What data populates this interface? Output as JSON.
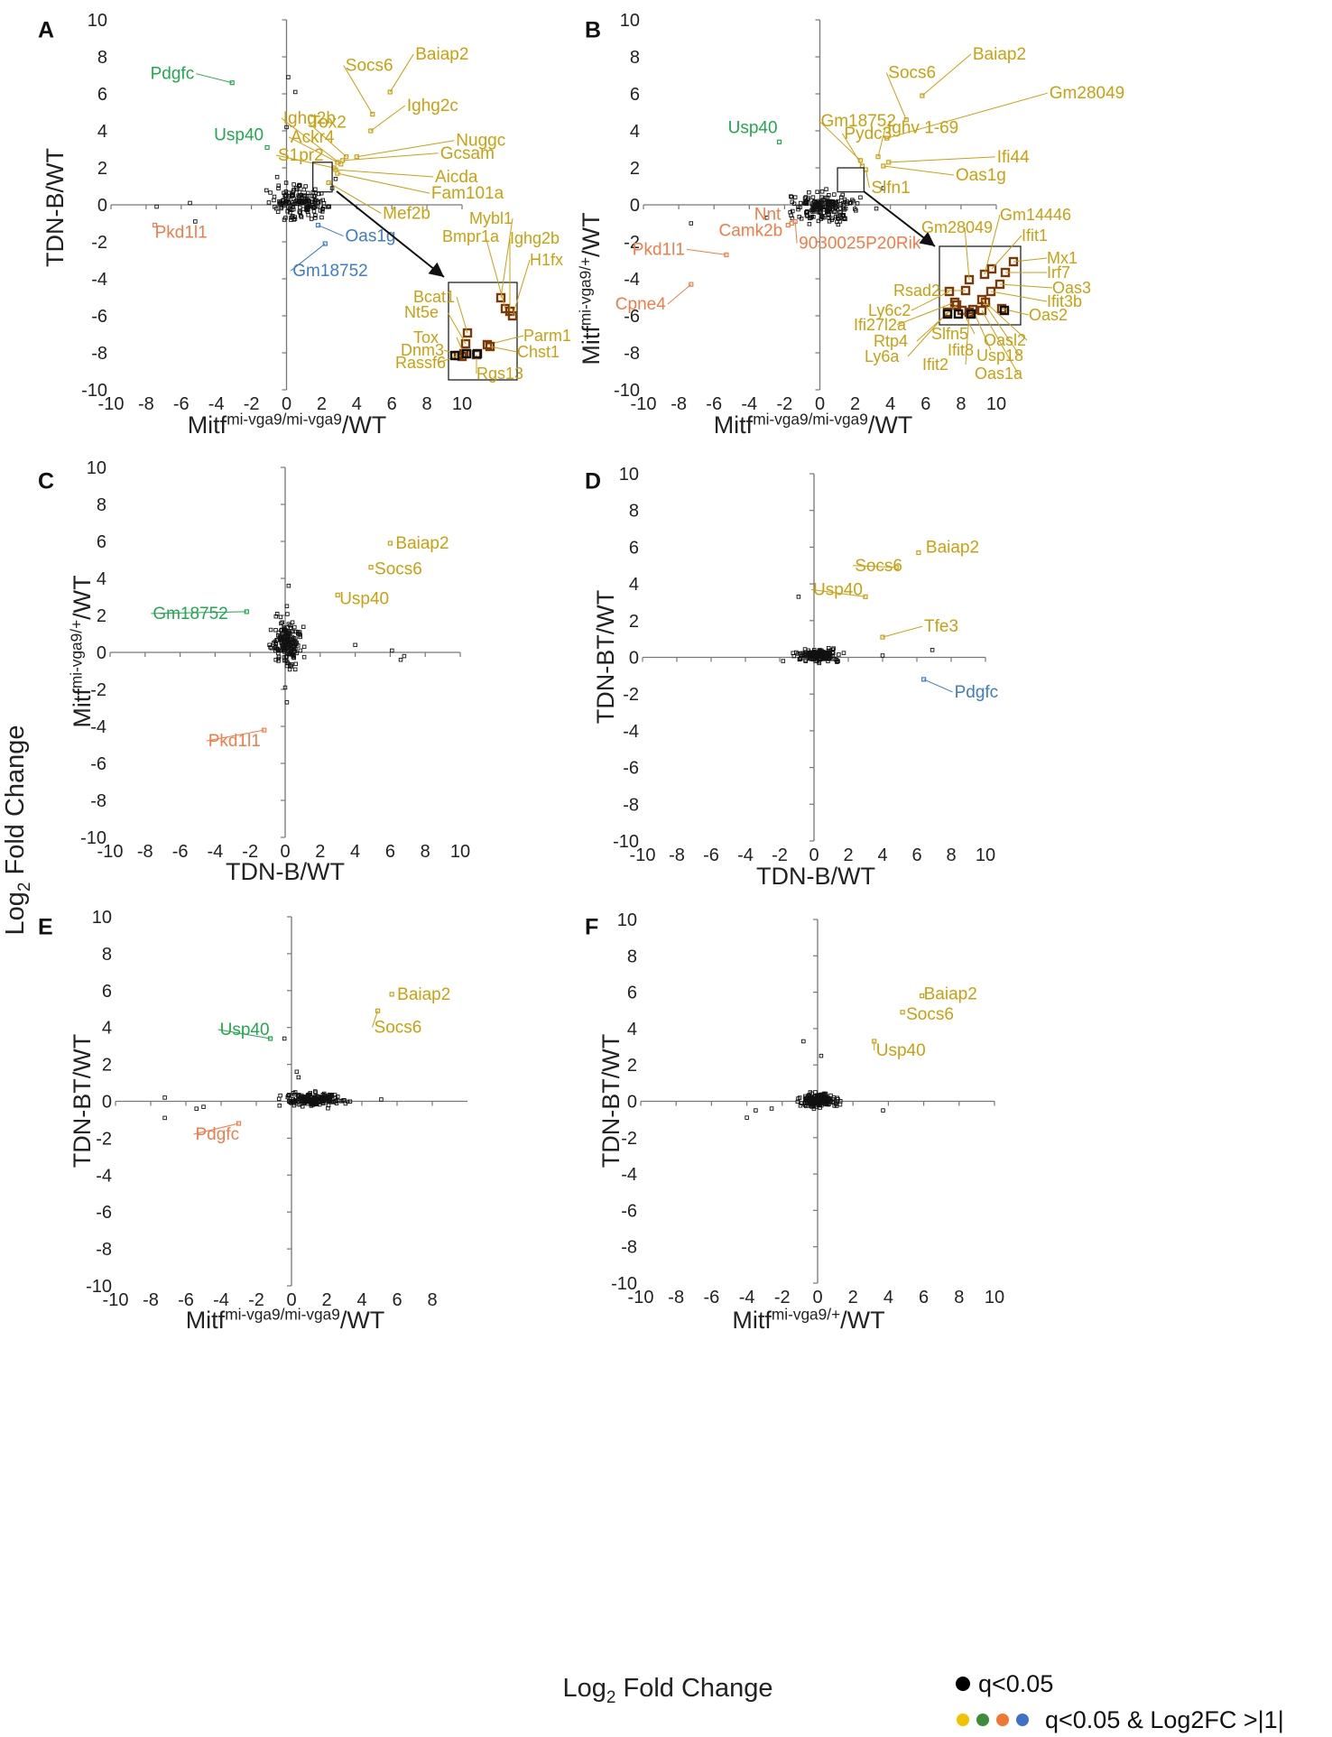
{
  "figure": {
    "shared_ylabel": "Log2 Fold Change",
    "shared_xlabel": "Log2 Fold Change",
    "legend": {
      "sig_label": "q<0.05",
      "sig_dot_color": "#000000",
      "fc_label": "q<0.05 & Log2FC >|1|",
      "fc_dot_colors": [
        "#F2C200",
        "#3C8C3C",
        "#F07830",
        "#3D72C8"
      ]
    },
    "colors": {
      "gold": "#C9A010",
      "green": "#22A84E",
      "orange": "#F07C48",
      "blue": "#3D7CC9",
      "brown": "#7A3A0A"
    }
  },
  "chart_data": [
    {
      "panel": "A",
      "type": "scatter",
      "xlabel": "Mitf^mi-vga9/mi-vga9/WT",
      "ylabel": "TDN-B/WT",
      "xlim": [
        -10,
        10
      ],
      "ylim": [
        -10,
        10
      ],
      "ticks": [
        "-10",
        "-8",
        "-6",
        "-4",
        "-2",
        "0",
        "2",
        "4",
        "6",
        "8",
        "10"
      ],
      "labeled_genes": [
        {
          "gene": "Pdgfc",
          "x": -3.1,
          "y": 6.6,
          "color": "green"
        },
        {
          "gene": "Usp40",
          "x": -1.1,
          "y": 3.1,
          "color": "green"
        },
        {
          "gene": "Pkd1l1",
          "x": -7.5,
          "y": -1.1,
          "color": "orange"
        },
        {
          "gene": "Oas1g",
          "x": 1.8,
          "y": -1.1,
          "color": "blue"
        },
        {
          "gene": "Gm18752",
          "x": 2.2,
          "y": -2.1,
          "color": "blue"
        },
        {
          "gene": "Socs6",
          "x": 4.9,
          "y": 4.9,
          "color": "gold"
        },
        {
          "gene": "Baiap2",
          "x": 5.9,
          "y": 6.1,
          "color": "gold"
        },
        {
          "gene": "Tox2",
          "x": 3.4,
          "y": 2.6,
          "color": "gold"
        },
        {
          "gene": "Ighg2b",
          "x": 3.1,
          "y": 2.2,
          "color": "gold"
        },
        {
          "gene": "Ighg2c",
          "x": 4.8,
          "y": 4.0,
          "color": "gold"
        },
        {
          "gene": "Ackr4",
          "x": 2.9,
          "y": 2.3,
          "color": "gold"
        },
        {
          "gene": "S1pr2",
          "x": 2.7,
          "y": 2.0,
          "color": "gold"
        },
        {
          "gene": "Nuggc",
          "x": 4.0,
          "y": 2.6,
          "color": "gold"
        },
        {
          "gene": "Gcsam",
          "x": 3.2,
          "y": 2.4,
          "color": "gold"
        },
        {
          "gene": "Aicda",
          "x": 2.8,
          "y": 1.9,
          "color": "gold"
        },
        {
          "gene": "Fam101a",
          "x": 2.9,
          "y": 1.7,
          "color": "gold"
        },
        {
          "gene": "Mef2b",
          "x": 2.4,
          "y": 1.2,
          "color": "gold"
        }
      ],
      "inset_genes": [
        {
          "gene": "Mybl1",
          "x": 1.3,
          "y": 2.6
        },
        {
          "gene": "Bmpr1a",
          "x": 1.4,
          "y": 2.4
        },
        {
          "gene": "Ighg2b",
          "x": 1.7,
          "y": 2.5
        },
        {
          "gene": "H1fx",
          "x": 1.9,
          "y": 2.3
        },
        {
          "gene": "Bcat1",
          "x": 1.6,
          "y": 1.6
        },
        {
          "gene": "Nt5e",
          "x": 1.5,
          "y": 1.4
        },
        {
          "gene": "Tox",
          "x": 1.6,
          "y": 1.1
        },
        {
          "gene": "Dnm3",
          "x": 1.8,
          "y": 1.0
        },
        {
          "gene": "Rassf6",
          "x": 1.7,
          "y": 0.9
        },
        {
          "gene": "Parm1",
          "x": 2.1,
          "y": 1.1
        },
        {
          "gene": "Chst1",
          "x": 2.2,
          "y": 1.0
        },
        {
          "gene": "Rgs13",
          "x": 2.0,
          "y": 0.8
        }
      ]
    },
    {
      "panel": "B",
      "type": "scatter",
      "xlabel": "Mitf^mi-vga9/mi-vga9/WT",
      "ylabel": "Mitf^mi-vga9/+/WT",
      "xlim": [
        -10,
        10
      ],
      "ylim": [
        -10,
        10
      ],
      "ticks": [
        "-10",
        "-8",
        "-6",
        "-4",
        "-2",
        "0",
        "2",
        "4",
        "6",
        "8",
        "10"
      ],
      "labeled_genes": [
        {
          "gene": "Usp40",
          "x": -2.3,
          "y": 3.4,
          "color": "green"
        },
        {
          "gene": "Pkd1l1",
          "x": -5.3,
          "y": -2.7,
          "color": "orange"
        },
        {
          "gene": "Cpne4",
          "x": -7.3,
          "y": -4.3,
          "color": "orange"
        },
        {
          "gene": "Nnt",
          "x": -1.8,
          "y": -1.1,
          "color": "orange"
        },
        {
          "gene": "Camk2b",
          "x": -1.6,
          "y": -1.0,
          "color": "orange"
        },
        {
          "gene": "9030025P20Rik",
          "x": -1.4,
          "y": -0.9,
          "color": "orange"
        },
        {
          "gene": "Baiap2",
          "x": 5.8,
          "y": 5.9,
          "color": "gold"
        },
        {
          "gene": "Socs6",
          "x": 4.9,
          "y": 4.6,
          "color": "gold"
        },
        {
          "gene": "Gm28049",
          "x": 3.8,
          "y": 3.6,
          "color": "gold"
        },
        {
          "gene": "Gm18752",
          "x": 2.3,
          "y": 2.4,
          "color": "gold"
        },
        {
          "gene": "Pydc3",
          "x": 2.4,
          "y": 2.1,
          "color": "gold"
        },
        {
          "gene": "Ighv 1-69",
          "x": 3.3,
          "y": 2.6,
          "color": "gold"
        },
        {
          "gene": "Ifi44",
          "x": 3.9,
          "y": 2.3,
          "color": "gold"
        },
        {
          "gene": "Oas1g",
          "x": 3.6,
          "y": 2.1,
          "color": "gold"
        },
        {
          "gene": "Slfn1",
          "x": 2.6,
          "y": 1.9,
          "color": "gold"
        }
      ],
      "inset_genes": [
        {
          "gene": "Gm28049",
          "x": 1.6,
          "y": 1.4
        },
        {
          "gene": "Gm14446",
          "x": 1.9,
          "y": 1.5
        },
        {
          "gene": "Ifit1",
          "x": 2.1,
          "y": 1.5
        },
        {
          "gene": "Mx1",
          "x": 2.3,
          "y": 1.6
        },
        {
          "gene": "Irf7",
          "x": 2.2,
          "y": 1.5
        },
        {
          "gene": "Oas3",
          "x": 2.2,
          "y": 1.4
        },
        {
          "gene": "Ifit3b",
          "x": 2.1,
          "y": 1.3
        },
        {
          "gene": "Oas2",
          "x": 2.4,
          "y": 1.1
        },
        {
          "gene": "Rsad2",
          "x": 1.4,
          "y": 1.3
        },
        {
          "gene": "Ly6c2",
          "x": 1.2,
          "y": 1.3
        },
        {
          "gene": "Ifi27l2a",
          "x": 1.2,
          "y": 1.2
        },
        {
          "gene": "Rtp4",
          "x": 1.3,
          "y": 1.2
        },
        {
          "gene": "Ly6a",
          "x": 1.2,
          "y": 1.1
        },
        {
          "gene": "Slfn5",
          "x": 1.5,
          "y": 1.2
        },
        {
          "gene": "Ifit2",
          "x": 1.6,
          "y": 1.1
        },
        {
          "gene": "Ifit8",
          "x": 1.7,
          "y": 1.1
        },
        {
          "gene": "Oasl2",
          "x": 2.0,
          "y": 1.2
        },
        {
          "gene": "Usp18",
          "x": 1.9,
          "y": 1.2
        },
        {
          "gene": "Oas1a",
          "x": 1.9,
          "y": 1.1
        }
      ]
    },
    {
      "panel": "C",
      "type": "scatter",
      "xlabel": "TDN-B/WT",
      "ylabel": "Mitf^mi-vga9/+/WT",
      "xlim": [
        -10,
        10
      ],
      "ylim": [
        -10,
        10
      ],
      "ticks": [
        "-10",
        "-8",
        "-6",
        "-4",
        "-2",
        "0",
        "2",
        "4",
        "6",
        "8",
        "10"
      ],
      "labeled_genes": [
        {
          "gene": "Gm18752",
          "x": -2.2,
          "y": 2.2,
          "color": "green"
        },
        {
          "gene": "Pkd1l1",
          "x": -1.2,
          "y": -4.2,
          "color": "orange"
        },
        {
          "gene": "Baiap2",
          "x": 6.0,
          "y": 5.9,
          "color": "gold"
        },
        {
          "gene": "Socs6",
          "x": 4.9,
          "y": 4.6,
          "color": "gold"
        },
        {
          "gene": "Usp40",
          "x": 3.0,
          "y": 3.1,
          "color": "gold"
        }
      ]
    },
    {
      "panel": "D",
      "type": "scatter",
      "xlabel": "TDN-B/WT",
      "ylabel": "TDN-BT/WT",
      "xlim": [
        -10,
        10
      ],
      "ylim": [
        -10,
        10
      ],
      "ticks": [
        "-10",
        "-8",
        "-6",
        "-4",
        "-2",
        "0",
        "2",
        "4",
        "6",
        "8",
        "10"
      ],
      "labeled_genes": [
        {
          "gene": "Baiap2",
          "x": 6.1,
          "y": 5.7,
          "color": "gold"
        },
        {
          "gene": "Socs6",
          "x": 4.8,
          "y": 4.9,
          "color": "gold"
        },
        {
          "gene": "Usp40",
          "x": 3.0,
          "y": 3.3,
          "color": "gold"
        },
        {
          "gene": "Tfe3",
          "x": 4.0,
          "y": 1.1,
          "color": "gold"
        },
        {
          "gene": "Pdgfc",
          "x": 6.4,
          "y": -1.2,
          "color": "blue"
        }
      ]
    },
    {
      "panel": "E",
      "type": "scatter",
      "xlabel": "Mitf^mi-vga9/mi-vga9/WT",
      "ylabel": "TDN-BT/WT",
      "xlim": [
        -10,
        10
      ],
      "ylim": [
        -10,
        10
      ],
      "xticks": [
        "-10",
        "-8",
        "-6",
        "-4",
        "-2",
        "0",
        "2",
        "4",
        "6",
        "8"
      ],
      "ticks": [
        "-10",
        "-8",
        "-6",
        "-4",
        "-2",
        "0",
        "2",
        "4",
        "6",
        "8",
        "10"
      ],
      "labeled_genes": [
        {
          "gene": "Usp40",
          "x": -1.2,
          "y": 3.4,
          "color": "green"
        },
        {
          "gene": "Pdgfc",
          "x": -3.0,
          "y": -1.2,
          "color": "orange"
        },
        {
          "gene": "Baiap2",
          "x": 5.7,
          "y": 5.8,
          "color": "gold"
        },
        {
          "gene": "Socs6",
          "x": 4.9,
          "y": 4.9,
          "color": "gold"
        }
      ]
    },
    {
      "panel": "F",
      "type": "scatter",
      "xlabel": "Mitf^mi-vga9/+/WT",
      "ylabel": "TDN-BT/WT",
      "xlim": [
        -10,
        10
      ],
      "ylim": [
        -10,
        10
      ],
      "ticks": [
        "-10",
        "-8",
        "-6",
        "-4",
        "-2",
        "0",
        "2",
        "4",
        "6",
        "8",
        "10"
      ],
      "labeled_genes": [
        {
          "gene": "Baiap2",
          "x": 5.9,
          "y": 5.8,
          "color": "gold"
        },
        {
          "gene": "Socs6",
          "x": 4.8,
          "y": 4.9,
          "color": "gold"
        },
        {
          "gene": "Usp40",
          "x": 3.2,
          "y": 3.3,
          "color": "gold"
        }
      ]
    }
  ]
}
